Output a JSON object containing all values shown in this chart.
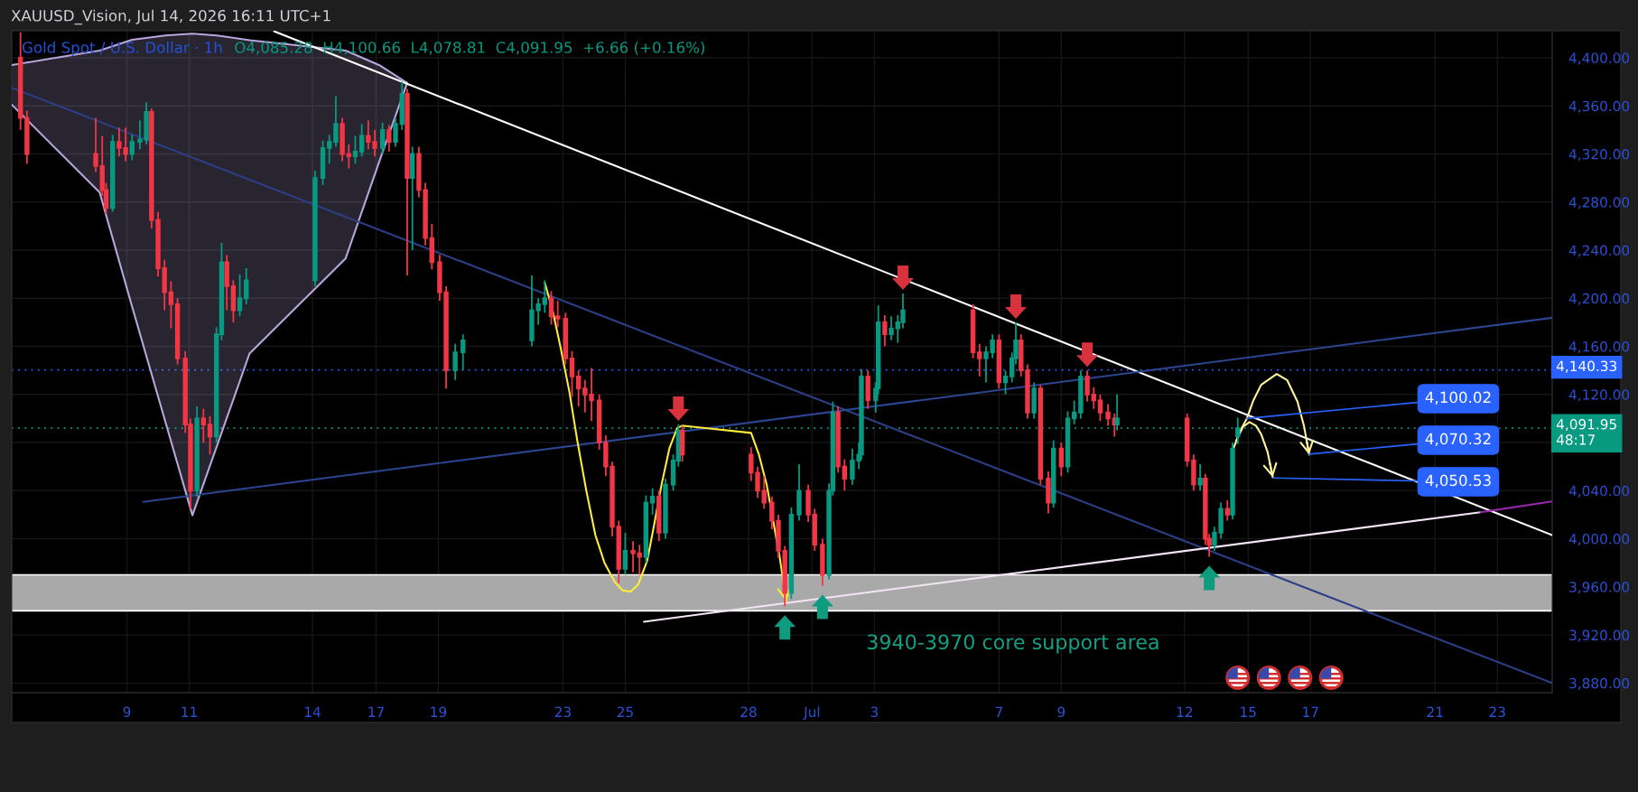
{
  "chart_data": {
    "type": "candlestick",
    "title": "Gold Spot / U.S. Dollar · 1h",
    "subtitle": "O4,085.28  H4,100.66  L4,078.81  C4,091.95  +6.66 (+0.16%)",
    "x": [
      "2026-06-05T14:00",
      "2026-06-05T19:00",
      "2026-06-08T00:00",
      "2026-06-08T05:00",
      "2026-06-08T08:00",
      "2026-06-08T13:00",
      "2026-06-08T18:00",
      "2026-06-08T23:00",
      "2026-06-09T04:00",
      "2026-06-09T10:00",
      "2026-06-09T15:00",
      "2026-06-09T19:00",
      "2026-06-10T00:00",
      "2026-06-10T05:00",
      "2026-06-10T10:00",
      "2026-06-10T15:00",
      "2026-06-10T21:00",
      "2026-06-11T01:00",
      "2026-06-11T06:00",
      "2026-06-11T11:00",
      "2026-06-11T16:00",
      "2026-06-11T21:00",
      "2026-06-12T01:00",
      "2026-06-12T05:00",
      "2026-06-12T10:00",
      "2026-06-12T15:00",
      "2026-06-12T20:00",
      "2026-06-15T01:00",
      "2026-06-15T07:00",
      "2026-06-15T12:00",
      "2026-06-15T17:00",
      "2026-06-15T22:00",
      "2026-06-16T03:00",
      "2026-06-16T08:00",
      "2026-06-16T13:00",
      "2026-06-16T18:00",
      "2026-06-16T23:00",
      "2026-06-17T05:00",
      "2026-06-17T10:00",
      "2026-06-17T15:00",
      "2026-06-17T20:00",
      "2026-06-18T00:00",
      "2026-06-18T04:00",
      "2026-06-18T09:00",
      "2026-06-18T14:00",
      "2026-06-18T19:00",
      "2026-06-19T01:00",
      "2026-06-19T06:00",
      "2026-06-19T13:00",
      "2026-06-19T19:00",
      "2026-06-22T00:00",
      "2026-06-22T05:00",
      "2026-06-22T10:00",
      "2026-06-22T15:00",
      "2026-06-22T20:00",
      "2026-06-23T02:00",
      "2026-06-23T07:00",
      "2026-06-23T12:00",
      "2026-06-23T17:00",
      "2026-06-23T22:00",
      "2026-06-24T04:00",
      "2026-06-24T09:00",
      "2026-06-24T14:00",
      "2026-06-24T19:00",
      "2026-06-25T00:00",
      "2026-06-25T06:00",
      "2026-06-25T11:00",
      "2026-06-25T16:00",
      "2026-06-25T21:00",
      "2026-06-26T02:00",
      "2026-06-26T07:00",
      "2026-06-26T13:00",
      "2026-06-26T17:00",
      "2026-06-26T20:00",
      "2026-06-29T01:00",
      "2026-06-29T06:00",
      "2026-06-29T11:00",
      "2026-06-29T17:00",
      "2026-06-29T22:00",
      "2026-06-30T03:00",
      "2026-06-30T08:00",
      "2026-06-30T14:00",
      "2026-06-30T21:00",
      "2026-07-01T02:00",
      "2026-07-01T08:00",
      "2026-07-01T13:00",
      "2026-07-01T16:00",
      "2026-07-01T20:00",
      "2026-07-02T01:00",
      "2026-07-02T07:00",
      "2026-07-02T12:00",
      "2026-07-02T14:00",
      "2026-07-02T19:00",
      "2026-07-03T01:00",
      "2026-07-03T03:00",
      "2026-07-03T08:00",
      "2026-07-03T13:00",
      "2026-07-03T18:00",
      "2026-07-03T22:00",
      "2026-07-06T04:00",
      "2026-07-06T09:00",
      "2026-07-06T14:00",
      "2026-07-06T19:00",
      "2026-07-07T00:00",
      "2026-07-07T05:00",
      "2026-07-07T10:00",
      "2026-07-07T13:00",
      "2026-07-07T17:00",
      "2026-07-07T22:00",
      "2026-07-08T03:00",
      "2026-07-08T08:00",
      "2026-07-08T14:00",
      "2026-07-08T18:00",
      "2026-07-09T00:00",
      "2026-07-09T05:00",
      "2026-07-09T10:00",
      "2026-07-09T15:00",
      "2026-07-09T20:00",
      "2026-07-10T01:00",
      "2026-07-10T06:00",
      "2026-07-10T12:00",
      "2026-07-10T17:00",
      "2026-07-10T19:00",
      "2026-07-13T01:00",
      "2026-07-13T06:00",
      "2026-07-13T11:00",
      "2026-07-13T15:00",
      "2026-07-13T18:00",
      "2026-07-13T22:00",
      "2026-07-14T03:00",
      "2026-07-14T08:00",
      "2026-07-14T12:00",
      "2026-07-14T16:00"
    ],
    "ohlc": [
      [
        4400,
        4421,
        4340,
        4350
      ],
      [
        4350,
        4356,
        4312,
        4320
      ],
      [
        4320,
        4350,
        4305,
        4310
      ],
      [
        4310,
        4335,
        4285,
        4290
      ],
      [
        4290,
        4296,
        4270,
        4275
      ],
      [
        4275,
        4336,
        4272,
        4330
      ],
      [
        4330,
        4342,
        4318,
        4325
      ],
      [
        4325,
        4342,
        4314,
        4320
      ],
      [
        4320,
        4336,
        4315,
        4330
      ],
      [
        4330,
        4348,
        4324,
        4332
      ],
      [
        4332,
        4363,
        4328,
        4355
      ],
      [
        4355,
        4358,
        4258,
        4265
      ],
      [
        4265,
        4272,
        4218,
        4225
      ],
      [
        4225,
        4232,
        4190,
        4205
      ],
      [
        4205,
        4214,
        4175,
        4195
      ],
      [
        4195,
        4200,
        4145,
        4150
      ],
      [
        4150,
        4156,
        4088,
        4095
      ],
      [
        4095,
        4100,
        4025,
        4040
      ],
      [
        4040,
        4110,
        4035,
        4100
      ],
      [
        4100,
        4108,
        4080,
        4095
      ],
      [
        4095,
        4102,
        4070,
        4085
      ],
      [
        4085,
        4176,
        4080,
        4170
      ],
      [
        4170,
        4246,
        4165,
        4230
      ],
      [
        4230,
        4236,
        4190,
        4210
      ],
      [
        4210,
        4215,
        4180,
        4190
      ],
      [
        4190,
        4220,
        4185,
        4200
      ],
      [
        4200,
        4225,
        4195,
        4215
      ],
      [
        4215,
        4306,
        4210,
        4300
      ],
      [
        4300,
        4331,
        4294,
        4325
      ],
      [
        4325,
        4336,
        4312,
        4330
      ],
      [
        4330,
        4368,
        4326,
        4345
      ],
      [
        4345,
        4350,
        4314,
        4320
      ],
      [
        4320,
        4328,
        4308,
        4318
      ],
      [
        4318,
        4335,
        4312,
        4322
      ],
      [
        4322,
        4345,
        4318,
        4335
      ],
      [
        4335,
        4348,
        4324,
        4330
      ],
      [
        4330,
        4340,
        4318,
        4325
      ],
      [
        4325,
        4346,
        4320,
        4340
      ],
      [
        4340,
        4344,
        4322,
        4330
      ],
      [
        4330,
        4350,
        4326,
        4345
      ],
      [
        4345,
        4380,
        4340,
        4370
      ],
      [
        4370,
        4374,
        4219,
        4300
      ],
      [
        4300,
        4326,
        4240,
        4320
      ],
      [
        4320,
        4326,
        4284,
        4290
      ],
      [
        4290,
        4296,
        4244,
        4250
      ],
      [
        4250,
        4262,
        4224,
        4230
      ],
      [
        4230,
        4236,
        4198,
        4205
      ],
      [
        4205,
        4210,
        4125,
        4140
      ],
      [
        4140,
        4162,
        4132,
        4155
      ],
      [
        4155,
        4170,
        4140,
        4165
      ],
      [
        4165,
        4219,
        4160,
        4190
      ],
      [
        4190,
        4200,
        4178,
        4195
      ],
      [
        4195,
        4215,
        4188,
        4200
      ],
      [
        4200,
        4206,
        4178,
        4185
      ],
      [
        4185,
        4198,
        4176,
        4183
      ],
      [
        4183,
        4188,
        4145,
        4150
      ],
      [
        4150,
        4156,
        4118,
        4135
      ],
      [
        4135,
        4140,
        4110,
        4125
      ],
      [
        4125,
        4132,
        4105,
        4120
      ],
      [
        4120,
        4142,
        4098,
        4115
      ],
      [
        4115,
        4120,
        4074,
        4080
      ],
      [
        4080,
        4086,
        4052,
        4060
      ],
      [
        4060,
        4064,
        4002,
        4010
      ],
      [
        4010,
        4015,
        3963,
        3975
      ],
      [
        3975,
        4005,
        3970,
        3990
      ],
      [
        3990,
        3998,
        3972,
        3988
      ],
      [
        3988,
        3995,
        3970,
        3985
      ],
      [
        3985,
        4036,
        3980,
        4030
      ],
      [
        4030,
        4042,
        4020,
        4035
      ],
      [
        4035,
        4040,
        3998,
        4005
      ],
      [
        4005,
        4050,
        4000,
        4045
      ],
      [
        4045,
        4070,
        4040,
        4065
      ],
      [
        4065,
        4095,
        4060,
        4090
      ],
      [
        4090,
        4094,
        4064,
        4070
      ],
      [
        4070,
        4076,
        4048,
        4055
      ],
      [
        4055,
        4060,
        4034,
        4040
      ],
      [
        4040,
        4052,
        4025,
        4030
      ],
      [
        4030,
        4035,
        4008,
        4015
      ],
      [
        4015,
        4020,
        3984,
        3990
      ],
      [
        3990,
        3994,
        3944,
        3955
      ],
      [
        3955,
        4026,
        3950,
        4020
      ],
      [
        4020,
        4062,
        4015,
        4040
      ],
      [
        4040,
        4045,
        4014,
        4020
      ],
      [
        4020,
        4025,
        3990,
        3995
      ],
      [
        3995,
        4000,
        3961,
        3970
      ],
      [
        3970,
        4046,
        3966,
        4040
      ],
      [
        4040,
        4114,
        4036,
        4105
      ],
      [
        4105,
        4110,
        4055,
        4060
      ],
      [
        4060,
        4066,
        4040,
        4050
      ],
      [
        4050,
        4075,
        4045,
        4065
      ],
      [
        4065,
        4080,
        4058,
        4070
      ],
      [
        4070,
        4141,
        4066,
        4135
      ],
      [
        4135,
        4140,
        4108,
        4115
      ],
      [
        4115,
        4130,
        4105,
        4125
      ],
      [
        4125,
        4194,
        4120,
        4180
      ],
      [
        4180,
        4186,
        4160,
        4170
      ],
      [
        4170,
        4185,
        4165,
        4175
      ],
      [
        4175,
        4186,
        4163,
        4180
      ],
      [
        4180,
        4204,
        4175,
        4190
      ],
      [
        4190,
        4195,
        4150,
        4155
      ],
      [
        4155,
        4162,
        4135,
        4150
      ],
      [
        4150,
        4160,
        4130,
        4155
      ],
      [
        4155,
        4170,
        4150,
        4165
      ],
      [
        4165,
        4170,
        4125,
        4130
      ],
      [
        4130,
        4140,
        4120,
        4135
      ],
      [
        4135,
        4155,
        4130,
        4150
      ],
      [
        4150,
        4180,
        4145,
        4165
      ],
      [
        4165,
        4170,
        4135,
        4140
      ],
      [
        4140,
        4145,
        4100,
        4105
      ],
      [
        4105,
        4130,
        4100,
        4125
      ],
      [
        4125,
        4128,
        4045,
        4050
      ],
      [
        4050,
        4056,
        4021,
        4030
      ],
      [
        4030,
        4082,
        4026,
        4075
      ],
      [
        4075,
        4080,
        4052,
        4060
      ],
      [
        4060,
        4106,
        4055,
        4100
      ],
      [
        4100,
        4115,
        4095,
        4105
      ],
      [
        4105,
        4140,
        4100,
        4135
      ],
      [
        4135,
        4140,
        4114,
        4120
      ],
      [
        4120,
        4126,
        4108,
        4115
      ],
      [
        4115,
        4120,
        4098,
        4105
      ],
      [
        4105,
        4112,
        4094,
        4100
      ],
      [
        4100,
        4104,
        4085,
        4095
      ],
      [
        4095,
        4120,
        4090,
        4100
      ],
      [
        4100,
        4104,
        4060,
        4065
      ],
      [
        4065,
        4070,
        4040,
        4045
      ],
      [
        4045,
        4062,
        4040,
        4050
      ],
      [
        4050,
        4054,
        3995,
        4000
      ],
      [
        4000,
        4004,
        3985,
        3995
      ],
      [
        3995,
        4010,
        3990,
        4005
      ],
      [
        4005,
        4030,
        4000,
        4025
      ],
      [
        4025,
        4032,
        4015,
        4020
      ],
      [
        4020,
        4080,
        4016,
        4075
      ],
      [
        4085.28,
        4100.66,
        4078.81,
        4091.95
      ]
    ],
    "colors": [
      "#f23645",
      "#f23645",
      "#f23645",
      "#f23645",
      "#f23645",
      "#089981",
      "#f23645",
      "#f23645",
      "#089981",
      "#089981",
      "#089981",
      "#f23645",
      "#f23645",
      "#f23645",
      "#f23645",
      "#f23645",
      "#f23645",
      "#f23645",
      "#089981",
      "#f23645",
      "#f23645",
      "#089981",
      "#089981",
      "#f23645",
      "#f23645",
      "#089981",
      "#089981",
      "#089981",
      "#089981",
      "#089981",
      "#089981",
      "#f23645",
      "#f23645",
      "#089981",
      "#089981",
      "#f23645",
      "#f23645",
      "#089981",
      "#f23645",
      "#089981",
      "#089981",
      "#f23645",
      "#089981",
      "#f23645",
      "#f23645",
      "#f23645",
      "#f23645",
      "#f23645",
      "#089981",
      "#089981",
      "#089981",
      "#089981",
      "#089981",
      "#f23645",
      "#f23645",
      "#f23645",
      "#f23645",
      "#f23645",
      "#f23645",
      "#f23645",
      "#f23645",
      "#f23645",
      "#f23645",
      "#f23645",
      "#089981",
      "#f23645",
      "#f23645",
      "#089981",
      "#089981",
      "#f23645",
      "#089981",
      "#089981",
      "#089981",
      "#f23645",
      "#f23645",
      "#f23645",
      "#f23645",
      "#f23645",
      "#f23645",
      "#f23645",
      "#089981",
      "#089981",
      "#f23645",
      "#f23645",
      "#f23645",
      "#089981",
      "#089981",
      "#f23645",
      "#f23645",
      "#089981",
      "#089981",
      "#089981",
      "#f23645",
      "#089981",
      "#089981",
      "#f23645",
      "#089981",
      "#089981",
      "#089981",
      "#f23645",
      "#f23645",
      "#089981",
      "#089981",
      "#f23645",
      "#089981",
      "#089981",
      "#089981",
      "#f23645",
      "#f23645",
      "#089981",
      "#f23645",
      "#f23645",
      "#089981",
      "#f23645",
      "#089981",
      "#089981",
      "#089981",
      "#f23645",
      "#f23645",
      "#f23645",
      "#f23645",
      "#f23645",
      "#089981",
      "#f23645",
      "#f23645",
      "#089981",
      "#f23645",
      "#f23645",
      "#089981",
      "#089981",
      "#f23645",
      "#089981",
      "#089981"
    ],
    "series": [
      {
        "type": "line",
        "x": [
          "2026-06-05T07:16",
          "2026-06-08T03:00",
          "2026-06-09T04:00",
          "2026-06-10T06:00",
          "2026-06-11T02:30",
          "2026-06-11T21:00",
          "2026-06-12T22:30",
          "2026-06-16T00:30",
          "2026-06-17T02:15",
          "2026-06-18T00:00"
        ],
        "values": [
          4361,
          4288,
          4193,
          4096,
          4019.5,
          4076,
          4154,
          4233,
          4313,
          4379
        ],
        "lower": [
          4361,
          4288,
          4193,
          4096,
          4019.5,
          4076,
          4154,
          4233,
          4313,
          4379
        ],
        "upper": [
          4394,
          4406,
          4415,
          4418.6,
          4420,
          4418.6,
          4414.6,
          4406,
          4394,
          4379
        ],
        "color": "#b8a6dc"
      },
      {
        "type": "line",
        "x": [
          "2026-06-05T07:16",
          "2026-06-08T03:00",
          "2026-06-09T04:00",
          "2026-06-10T06:00",
          "2026-06-11T02:30",
          "2026-06-11T21:00",
          "2026-06-12T22:30",
          "2026-06-16T00:30",
          "2026-06-17T02:15",
          "2026-06-18T00:00"
        ],
        "values": [
          4394,
          4406,
          4415,
          4418.6,
          4420,
          4418.6,
          4414.6,
          4406,
          4394,
          4379
        ],
        "color": "#b8a6dc"
      },
      {
        "type": "line",
        "x": [
          "2026-06-13T17:30",
          "2026-07-24T18:18"
        ],
        "values": [
          4422,
          4003
        ],
        "color": "#ffffff"
      },
      {
        "type": "line",
        "x": [
          "2026-06-05T07:16",
          "2026-07-24T18:18"
        ],
        "values": [
          4375,
          3880
        ],
        "color": "#2c3f86"
      },
      {
        "type": "line",
        "x": [
          "2026-06-09T12:40",
          "2026-07-24T18:18"
        ],
        "values": [
          4030.7,
          4183.8
        ],
        "color": "#2c4590"
      },
      {
        "type": "line",
        "x": [
          "2026-06-25T14:24",
          "2026-07-22T11:00"
        ],
        "values": [
          3931,
          4022
        ],
        "color": "#f3e5f5"
      },
      {
        "type": "line",
        "x": [
          "2026-07-22T11:00",
          "2026-07-24T18:18"
        ],
        "values": [
          4022,
          4031
        ],
        "color": "#9c27b0"
      },
      {
        "type": "line",
        "x": [
          "2026-06-22T10:00",
          "2026-06-22T16:00",
          "2026-06-22T22:00",
          "2026-06-23T05:00",
          "2026-06-23T11:00",
          "2026-06-23T18:00",
          "2026-06-24T01:00",
          "2026-06-24T08:00",
          "2026-06-24T16:00",
          "2026-06-24T22:00",
          "2026-06-25T04:00",
          "2026-06-25T10:00",
          "2026-06-25T17:00",
          "2026-06-25T22:00",
          "2026-06-26T04:00",
          "2026-06-26T10:00",
          "2026-06-26T16:00",
          "2026-06-26T20:00",
          "2026-06-29T01:00",
          "2026-06-29T07:00",
          "2026-06-29T13:00",
          "2026-06-29T18:00",
          "2026-06-29T23:00",
          "2026-06-30T04:00"
        ],
        "values": [
          4213,
          4190,
          4160,
          4122,
          4082,
          4040,
          4003,
          3980,
          3964,
          3957,
          3956,
          3962,
          3982,
          4010,
          4045,
          4075,
          4092,
          4094,
          4088,
          4070,
          4045,
          4015,
          3985,
          3948
        ],
        "color": "#ffeb3b"
      },
      {
        "type": "line",
        "x": [
          "2026-07-14T13:00",
          "2026-07-14T18:00",
          "2026-07-14T23:00",
          "2026-07-15T04:00",
          "2026-07-15T10:00",
          "2026-07-15T22:00",
          "2026-07-16T06:00",
          "2026-07-16T14:00",
          "2026-07-16T19:00",
          "2026-07-16T23:00"
        ],
        "values": [
          4076,
          4090,
          4100,
          4115,
          4128,
          4137,
          4132,
          4114,
          4094,
          4070
        ],
        "color": "#fff59d"
      },
      {
        "type": "line",
        "x": [
          "2026-07-14T15:00",
          "2026-07-14T20:00",
          "2026-07-15T01:00",
          "2026-07-15T06:00",
          "2026-07-15T10:00",
          "2026-07-15T15:00",
          "2026-07-15T19:00"
        ],
        "values": [
          4082,
          4093,
          4097,
          4094,
          4087,
          4072,
          4051
        ],
        "color": "#fff59d"
      }
    ],
    "xlim": [
      "2026-06-05T07:16",
      "2026-07-24T18:18"
    ],
    "ylim": [
      3872,
      4422.5
    ],
    "xticks": [
      {
        "value": "2026-06-09",
        "label": "9"
      },
      {
        "value": "2026-06-11",
        "label": "11"
      },
      {
        "value": "2026-06-14T23:00",
        "label": "14"
      },
      {
        "value": "2026-06-17",
        "label": "17"
      },
      {
        "value": "2026-06-19",
        "label": "19"
      },
      {
        "value": "2026-06-23",
        "label": "23"
      },
      {
        "value": "2026-06-25",
        "label": "25"
      },
      {
        "value": "2026-06-28T23:00",
        "label": "28"
      },
      {
        "value": "2026-07-01",
        "label": "Jul"
      },
      {
        "value": "2026-07-03",
        "label": "3"
      },
      {
        "value": "2026-07-07",
        "label": "7"
      },
      {
        "value": "2026-07-09",
        "label": "9"
      },
      {
        "value": "2026-07-12T23:00",
        "label": "12"
      },
      {
        "value": "2026-07-15",
        "label": "15"
      },
      {
        "value": "2026-07-17",
        "label": "17"
      },
      {
        "value": "2026-07-21",
        "label": "21"
      },
      {
        "value": "2026-07-23",
        "label": "23"
      }
    ],
    "yticks": [
      {
        "value": 3880,
        "label": "3,880.00"
      },
      {
        "value": 3920,
        "label": "3,920.00"
      },
      {
        "value": 3960,
        "label": "3,960.00"
      },
      {
        "value": 4000,
        "label": "4,000.00"
      },
      {
        "value": 4040,
        "label": "4,040.00"
      },
      {
        "value": 4080,
        "label": null
      },
      {
        "value": 4120,
        "label": "4,120.00"
      },
      {
        "value": 4160,
        "label": "4,160.00"
      },
      {
        "value": 4200,
        "label": "4,200.00"
      },
      {
        "value": 4240,
        "label": "4,240.00"
      },
      {
        "value": 4280,
        "label": "4,280.00"
      },
      {
        "value": 4320,
        "label": "4,320.00"
      },
      {
        "value": 4360,
        "label": "4,360.00"
      },
      {
        "value": 4400,
        "label": "4,400.00"
      }
    ],
    "ref_lines": [
      {
        "axis": "y",
        "value": 4140.33,
        "label": "4,140.33",
        "color": "#2962ff",
        "line_style": "dotted"
      },
      {
        "axis": "y",
        "value": 4091.95,
        "label": "4,091.95\n48:17",
        "color": "#089981",
        "line_style": "dotted"
      }
    ],
    "bands": [
      {
        "axis": "y",
        "from": 3940,
        "to": 3970,
        "label": "3940-3970 core support area",
        "color": "#a9a9a9"
      }
    ],
    "annotations": [
      "XAUUSD_Vision, Jul 14, 2026 16:11 UTC+1",
      {
        "text": "4,100.02",
        "x": "2026-07-14T23:00",
        "y": 4100.02
      },
      {
        "text": "4,070.32",
        "x": "2026-07-16T23:00",
        "y": 4070.32
      },
      {
        "text": "4,050.53",
        "x": "2026-07-15T19:00",
        "y": 4050.53
      }
    ],
    "grid": true
  }
}
